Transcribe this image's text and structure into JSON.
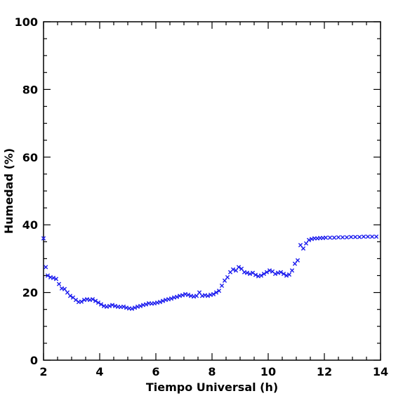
{
  "chart_data": {
    "type": "scatter",
    "xlabel": "Tiempo Universal (h)",
    "ylabel": "Humedad (%)",
    "xlim": [
      2,
      14
    ],
    "ylim": [
      0,
      100
    ],
    "xticks": [
      2,
      4,
      6,
      8,
      10,
      12,
      14
    ],
    "yticks": [
      0,
      20,
      40,
      60,
      80,
      100
    ],
    "marker": "x",
    "grid": false,
    "colors": {
      "points": "#1a1aee",
      "axis": "#000000"
    },
    "series": [
      {
        "x": [
          2.0,
          2.08,
          2.15,
          2.25,
          2.35,
          2.45,
          2.55,
          2.65,
          2.75,
          2.85,
          2.95,
          3.05,
          3.15,
          3.25,
          3.35,
          3.45,
          3.55,
          3.65,
          3.75,
          3.85,
          3.95,
          4.05,
          4.15,
          4.25,
          4.35,
          4.45,
          4.55,
          4.65,
          4.75,
          4.85,
          4.95,
          5.05,
          5.15,
          5.25,
          5.35,
          5.45,
          5.55,
          5.65,
          5.75,
          5.85,
          5.95,
          6.05,
          6.15,
          6.25,
          6.35,
          6.45,
          6.55,
          6.65,
          6.75,
          6.85,
          6.95,
          7.05,
          7.15,
          7.25,
          7.35,
          7.45,
          7.55,
          7.65,
          7.75,
          7.85,
          7.95,
          8.05,
          8.15,
          8.25,
          8.35,
          8.45,
          8.55,
          8.65,
          8.75,
          8.85,
          8.95,
          9.05,
          9.15,
          9.25,
          9.35,
          9.45,
          9.55,
          9.65,
          9.75,
          9.85,
          9.95,
          10.05,
          10.15,
          10.25,
          10.35,
          10.45,
          10.55,
          10.65,
          10.75,
          10.85,
          10.95,
          11.05,
          11.15,
          11.25,
          11.35,
          11.45,
          11.55,
          11.65,
          11.75,
          11.85,
          11.95,
          12.05,
          12.2,
          12.35,
          12.5,
          12.65,
          12.8,
          12.95,
          13.1,
          13.25,
          13.4,
          13.55,
          13.7,
          13.85
        ],
        "y": [
          36.0,
          27.5,
          25.0,
          24.5,
          24.3,
          24.0,
          22.5,
          21.2,
          21.0,
          20.0,
          19.0,
          18.5,
          17.8,
          17.2,
          17.3,
          17.8,
          18.0,
          17.8,
          18.0,
          17.5,
          17.0,
          16.5,
          16.0,
          15.8,
          16.0,
          16.3,
          16.0,
          15.8,
          15.7,
          15.8,
          15.5,
          15.3,
          15.2,
          15.5,
          15.8,
          16.0,
          16.3,
          16.5,
          16.8,
          16.7,
          16.8,
          17.0,
          17.2,
          17.5,
          17.8,
          18.0,
          18.2,
          18.5,
          18.7,
          19.0,
          19.2,
          19.5,
          19.3,
          19.0,
          18.8,
          19.0,
          20.0,
          19.0,
          19.2,
          19.0,
          19.3,
          19.5,
          20.0,
          20.5,
          22.0,
          23.5,
          24.5,
          26.0,
          26.8,
          26.5,
          27.5,
          27.0,
          26.0,
          25.8,
          25.5,
          25.8,
          25.2,
          24.8,
          25.0,
          25.5,
          26.0,
          26.5,
          26.2,
          25.5,
          25.8,
          26.0,
          25.5,
          25.0,
          25.3,
          26.5,
          28.5,
          29.5,
          34.0,
          33.0,
          34.5,
          35.5,
          35.8,
          36.0,
          36.0,
          36.1,
          36.1,
          36.2,
          36.2,
          36.2,
          36.3,
          36.3,
          36.3,
          36.4,
          36.4,
          36.4,
          36.5,
          36.5,
          36.5,
          36.5
        ]
      }
    ]
  }
}
